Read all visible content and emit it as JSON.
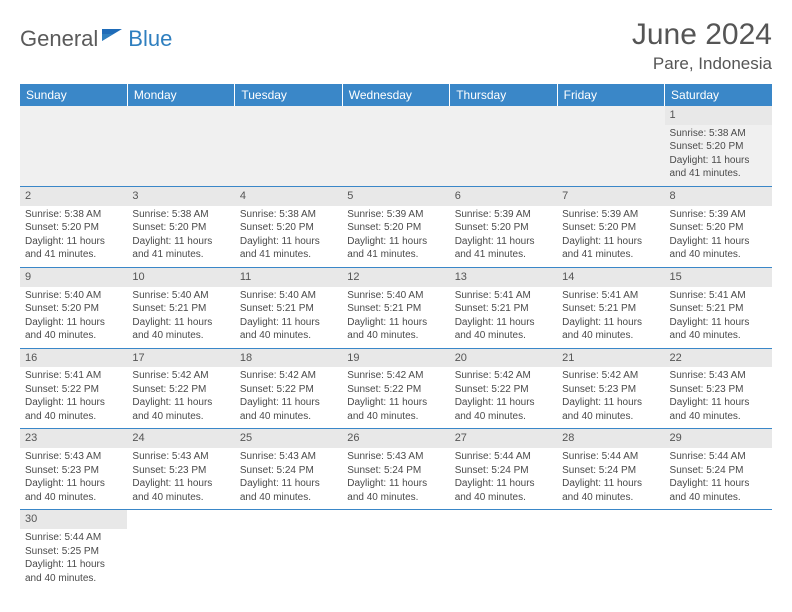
{
  "logo": {
    "part1": "General",
    "part2": "Blue"
  },
  "title": "June 2024",
  "location": "Pare, Indonesia",
  "colors": {
    "header_bg": "#3a87c8",
    "header_text": "#ffffff",
    "border": "#3a87c8",
    "daynum_bg": "#e8e8e8",
    "text": "#4a4a4a",
    "logo_gray": "#5a5a5a",
    "logo_blue": "#2f7fbf"
  },
  "weekdays": [
    "Sunday",
    "Monday",
    "Tuesday",
    "Wednesday",
    "Thursday",
    "Friday",
    "Saturday"
  ],
  "weeks": [
    [
      null,
      null,
      null,
      null,
      null,
      null,
      {
        "d": "1",
        "sr": "Sunrise: 5:38 AM",
        "ss": "Sunset: 5:20 PM",
        "dl1": "Daylight: 11 hours",
        "dl2": "and 41 minutes."
      }
    ],
    [
      {
        "d": "2",
        "sr": "Sunrise: 5:38 AM",
        "ss": "Sunset: 5:20 PM",
        "dl1": "Daylight: 11 hours",
        "dl2": "and 41 minutes."
      },
      {
        "d": "3",
        "sr": "Sunrise: 5:38 AM",
        "ss": "Sunset: 5:20 PM",
        "dl1": "Daylight: 11 hours",
        "dl2": "and 41 minutes."
      },
      {
        "d": "4",
        "sr": "Sunrise: 5:38 AM",
        "ss": "Sunset: 5:20 PM",
        "dl1": "Daylight: 11 hours",
        "dl2": "and 41 minutes."
      },
      {
        "d": "5",
        "sr": "Sunrise: 5:39 AM",
        "ss": "Sunset: 5:20 PM",
        "dl1": "Daylight: 11 hours",
        "dl2": "and 41 minutes."
      },
      {
        "d": "6",
        "sr": "Sunrise: 5:39 AM",
        "ss": "Sunset: 5:20 PM",
        "dl1": "Daylight: 11 hours",
        "dl2": "and 41 minutes."
      },
      {
        "d": "7",
        "sr": "Sunrise: 5:39 AM",
        "ss": "Sunset: 5:20 PM",
        "dl1": "Daylight: 11 hours",
        "dl2": "and 41 minutes."
      },
      {
        "d": "8",
        "sr": "Sunrise: 5:39 AM",
        "ss": "Sunset: 5:20 PM",
        "dl1": "Daylight: 11 hours",
        "dl2": "and 40 minutes."
      }
    ],
    [
      {
        "d": "9",
        "sr": "Sunrise: 5:40 AM",
        "ss": "Sunset: 5:20 PM",
        "dl1": "Daylight: 11 hours",
        "dl2": "and 40 minutes."
      },
      {
        "d": "10",
        "sr": "Sunrise: 5:40 AM",
        "ss": "Sunset: 5:21 PM",
        "dl1": "Daylight: 11 hours",
        "dl2": "and 40 minutes."
      },
      {
        "d": "11",
        "sr": "Sunrise: 5:40 AM",
        "ss": "Sunset: 5:21 PM",
        "dl1": "Daylight: 11 hours",
        "dl2": "and 40 minutes."
      },
      {
        "d": "12",
        "sr": "Sunrise: 5:40 AM",
        "ss": "Sunset: 5:21 PM",
        "dl1": "Daylight: 11 hours",
        "dl2": "and 40 minutes."
      },
      {
        "d": "13",
        "sr": "Sunrise: 5:41 AM",
        "ss": "Sunset: 5:21 PM",
        "dl1": "Daylight: 11 hours",
        "dl2": "and 40 minutes."
      },
      {
        "d": "14",
        "sr": "Sunrise: 5:41 AM",
        "ss": "Sunset: 5:21 PM",
        "dl1": "Daylight: 11 hours",
        "dl2": "and 40 minutes."
      },
      {
        "d": "15",
        "sr": "Sunrise: 5:41 AM",
        "ss": "Sunset: 5:21 PM",
        "dl1": "Daylight: 11 hours",
        "dl2": "and 40 minutes."
      }
    ],
    [
      {
        "d": "16",
        "sr": "Sunrise: 5:41 AM",
        "ss": "Sunset: 5:22 PM",
        "dl1": "Daylight: 11 hours",
        "dl2": "and 40 minutes."
      },
      {
        "d": "17",
        "sr": "Sunrise: 5:42 AM",
        "ss": "Sunset: 5:22 PM",
        "dl1": "Daylight: 11 hours",
        "dl2": "and 40 minutes."
      },
      {
        "d": "18",
        "sr": "Sunrise: 5:42 AM",
        "ss": "Sunset: 5:22 PM",
        "dl1": "Daylight: 11 hours",
        "dl2": "and 40 minutes."
      },
      {
        "d": "19",
        "sr": "Sunrise: 5:42 AM",
        "ss": "Sunset: 5:22 PM",
        "dl1": "Daylight: 11 hours",
        "dl2": "and 40 minutes."
      },
      {
        "d": "20",
        "sr": "Sunrise: 5:42 AM",
        "ss": "Sunset: 5:22 PM",
        "dl1": "Daylight: 11 hours",
        "dl2": "and 40 minutes."
      },
      {
        "d": "21",
        "sr": "Sunrise: 5:42 AM",
        "ss": "Sunset: 5:23 PM",
        "dl1": "Daylight: 11 hours",
        "dl2": "and 40 minutes."
      },
      {
        "d": "22",
        "sr": "Sunrise: 5:43 AM",
        "ss": "Sunset: 5:23 PM",
        "dl1": "Daylight: 11 hours",
        "dl2": "and 40 minutes."
      }
    ],
    [
      {
        "d": "23",
        "sr": "Sunrise: 5:43 AM",
        "ss": "Sunset: 5:23 PM",
        "dl1": "Daylight: 11 hours",
        "dl2": "and 40 minutes."
      },
      {
        "d": "24",
        "sr": "Sunrise: 5:43 AM",
        "ss": "Sunset: 5:23 PM",
        "dl1": "Daylight: 11 hours",
        "dl2": "and 40 minutes."
      },
      {
        "d": "25",
        "sr": "Sunrise: 5:43 AM",
        "ss": "Sunset: 5:24 PM",
        "dl1": "Daylight: 11 hours",
        "dl2": "and 40 minutes."
      },
      {
        "d": "26",
        "sr": "Sunrise: 5:43 AM",
        "ss": "Sunset: 5:24 PM",
        "dl1": "Daylight: 11 hours",
        "dl2": "and 40 minutes."
      },
      {
        "d": "27",
        "sr": "Sunrise: 5:44 AM",
        "ss": "Sunset: 5:24 PM",
        "dl1": "Daylight: 11 hours",
        "dl2": "and 40 minutes."
      },
      {
        "d": "28",
        "sr": "Sunrise: 5:44 AM",
        "ss": "Sunset: 5:24 PM",
        "dl1": "Daylight: 11 hours",
        "dl2": "and 40 minutes."
      },
      {
        "d": "29",
        "sr": "Sunrise: 5:44 AM",
        "ss": "Sunset: 5:24 PM",
        "dl1": "Daylight: 11 hours",
        "dl2": "and 40 minutes."
      }
    ],
    [
      {
        "d": "30",
        "sr": "Sunrise: 5:44 AM",
        "ss": "Sunset: 5:25 PM",
        "dl1": "Daylight: 11 hours",
        "dl2": "and 40 minutes."
      },
      null,
      null,
      null,
      null,
      null,
      null
    ]
  ]
}
